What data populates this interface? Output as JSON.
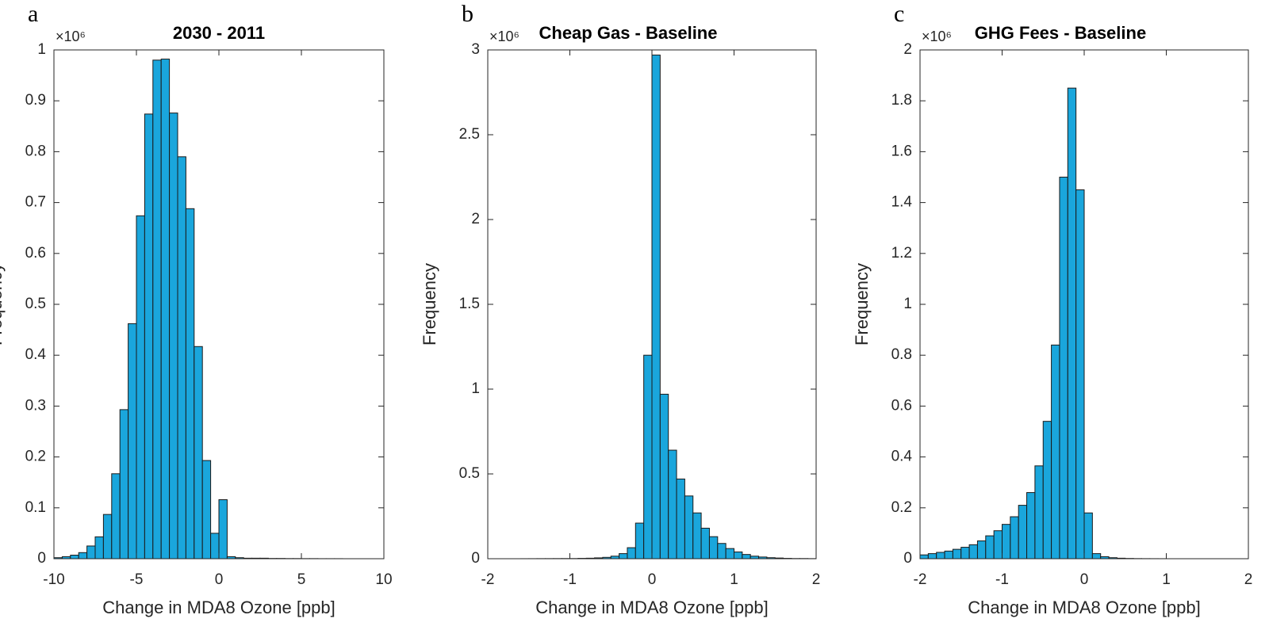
{
  "chart_data": [
    {
      "type": "histogram",
      "panel_label": "a",
      "title": "2030 - 2011",
      "y_exponent_label": "×10⁶",
      "xlabel": "Change in MDA8 Ozone [ppb]",
      "ylabel": "Frequency",
      "color": "#1aa6dc",
      "edgecolor": "#1a1a1a",
      "bins": [
        -10,
        -9.5,
        -9,
        -8.5,
        -8,
        -7.5,
        -7,
        -6.5,
        -6,
        -5.5,
        -5,
        -4.5,
        -4,
        -3.5,
        -3,
        -2.5,
        -2,
        -1.5,
        -1,
        -0.5,
        0,
        0.5,
        1,
        1.5,
        2,
        2.5,
        3,
        3.5,
        4,
        4.5,
        5,
        5.5,
        6,
        6.5,
        7,
        7.5,
        8,
        8.5,
        9,
        9.5,
        10
      ],
      "values": [
        0.002,
        0.004,
        0.007,
        0.012,
        0.025,
        0.043,
        0.087,
        0.167,
        0.293,
        0.462,
        0.674,
        0.874,
        0.98,
        0.982,
        0.876,
        0.79,
        0.688,
        0.417,
        0.193,
        0.05,
        0.116,
        0.004,
        0.002,
        0.001,
        0.001,
        0.001,
        0.0005,
        0.0005,
        0.0003,
        0.0003,
        0.0002,
        0.0002,
        0.0001,
        0.0001,
        0.0001,
        0,
        0,
        0,
        0,
        0
      ],
      "xlim": [
        -10,
        10
      ],
      "xticks": [
        -10,
        -5,
        0,
        5,
        10
      ],
      "ylim": [
        0,
        1
      ],
      "yticks": [
        0,
        0.1,
        0.2,
        0.3,
        0.4,
        0.5,
        0.6,
        0.7,
        0.8,
        0.9,
        1
      ]
    },
    {
      "type": "histogram",
      "panel_label": "b",
      "title": "Cheap Gas - Baseline",
      "y_exponent_label": "×10⁶",
      "xlabel": "Change in MDA8 Ozone [ppb]",
      "ylabel": "Frequency",
      "color": "#1aa6dc",
      "edgecolor": "#1a1a1a",
      "bins": [
        -2,
        -1.9,
        -1.8,
        -1.7,
        -1.6,
        -1.5,
        -1.4,
        -1.3,
        -1.2,
        -1.1,
        -1,
        -0.9,
        -0.8,
        -0.7,
        -0.6,
        -0.5,
        -0.4,
        -0.3,
        -0.2,
        -0.1,
        0,
        0.1,
        0.2,
        0.3,
        0.4,
        0.5,
        0.6,
        0.7,
        0.8,
        0.9,
        1,
        1.1,
        1.2,
        1.3,
        1.4,
        1.5,
        1.6,
        1.7,
        1.8,
        1.9,
        2
      ],
      "values": [
        0,
        0,
        0,
        0,
        0.0002,
        0.0003,
        0.0005,
        0.0006,
        0.0008,
        0.001,
        0.001,
        0.002,
        0.003,
        0.005,
        0.008,
        0.015,
        0.03,
        0.065,
        0.21,
        1.2,
        2.97,
        0.97,
        0.64,
        0.47,
        0.37,
        0.27,
        0.18,
        0.13,
        0.09,
        0.06,
        0.04,
        0.025,
        0.015,
        0.01,
        0.006,
        0.004,
        0.002,
        0.001,
        0.001,
        0.0005
      ],
      "xlim": [
        -2,
        2
      ],
      "xticks": [
        -2,
        -1,
        0,
        1,
        2
      ],
      "ylim": [
        0,
        3
      ],
      "yticks": [
        0,
        0.5,
        1,
        1.5,
        2,
        2.5,
        3
      ]
    },
    {
      "type": "histogram",
      "panel_label": "c",
      "title": "GHG Fees - Baseline",
      "y_exponent_label": "×10⁶",
      "xlabel": "Change in MDA8 Ozone [ppb]",
      "ylabel": "Frequency",
      "color": "#1aa6dc",
      "edgecolor": "#1a1a1a",
      "bins": [
        -2,
        -1.9,
        -1.8,
        -1.7,
        -1.6,
        -1.5,
        -1.4,
        -1.3,
        -1.2,
        -1.1,
        -1,
        -0.9,
        -0.8,
        -0.7,
        -0.6,
        -0.5,
        -0.4,
        -0.3,
        -0.2,
        -0.1,
        0,
        0.1,
        0.2,
        0.3,
        0.4,
        0.5,
        0.6,
        0.7,
        0.8,
        0.9,
        1,
        1.1,
        1.2,
        1.3,
        1.4,
        1.5,
        1.6,
        1.7,
        1.8,
        1.9,
        2
      ],
      "values": [
        0.015,
        0.02,
        0.025,
        0.03,
        0.037,
        0.045,
        0.055,
        0.07,
        0.09,
        0.11,
        0.135,
        0.165,
        0.21,
        0.26,
        0.365,
        0.54,
        0.84,
        1.5,
        1.85,
        1.45,
        0.18,
        0.02,
        0.008,
        0.004,
        0.002,
        0.001,
        0.0005,
        0.0003,
        0.0002,
        0.0001,
        0,
        0,
        0,
        0,
        0,
        0,
        0,
        0,
        0,
        0
      ],
      "xlim": [
        -2,
        2
      ],
      "xticks": [
        -2,
        -1,
        0,
        1,
        2
      ],
      "ylim": [
        0,
        2
      ],
      "yticks": [
        0,
        0.2,
        0.4,
        0.6,
        0.8,
        1,
        1.2,
        1.4,
        1.6,
        1.8,
        2
      ]
    }
  ]
}
